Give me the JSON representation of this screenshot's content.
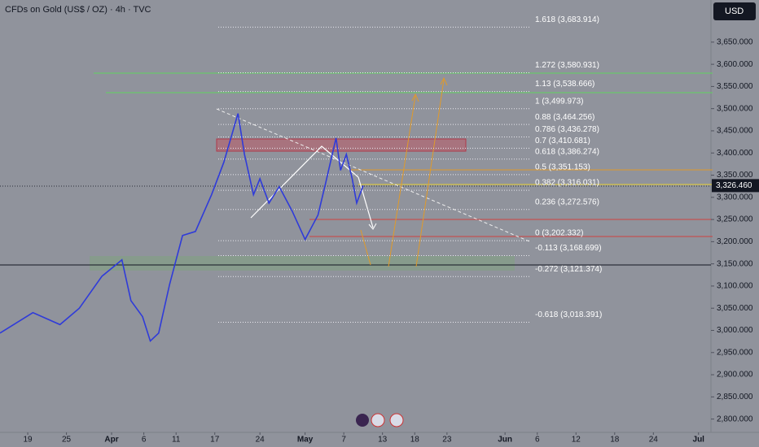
{
  "chart_data": {
    "type": "line",
    "title": "CFDs on Gold (US$ / OZ) · 4h · TVC",
    "currency": "USD",
    "x": [
      73.7,
      78.8,
      83,
      86,
      89.5,
      92.6,
      94,
      95.8,
      97,
      98.3,
      100,
      102,
      104,
      106.5,
      108.4,
      110.6,
      111.6,
      113,
      114,
      115.4,
      117,
      119,
      121,
      123,
      124.2,
      125.8,
      126.5,
      127.4,
      128.3,
      129,
      130
    ],
    "series": [
      {
        "name": "Gold",
        "color": "#2f3bd9",
        "values": [
          2994,
          3040,
          3013,
          3050,
          3122,
          3159,
          3067,
          3031,
          2976,
          2994,
          3104,
          3214,
          3223,
          3306,
          3379,
          3489,
          3397,
          3306,
          3342,
          3287,
          3324,
          3269,
          3205,
          3260,
          3333,
          3434,
          3361,
          3397,
          3342,
          3287,
          3326.46
        ]
      }
    ],
    "last_price": {
      "value": 3326.46,
      "label": "3,326.460"
    },
    "xlim": [
      73.7,
      183.8
    ],
    "xticks": [
      {
        "value": 78,
        "label": "19"
      },
      {
        "value": 84,
        "label": "25"
      },
      {
        "value": 91,
        "label": "Apr"
      },
      {
        "value": 96,
        "label": "6"
      },
      {
        "value": 101,
        "label": "11"
      },
      {
        "value": 107,
        "label": "17"
      },
      {
        "value": 114,
        "label": "24"
      },
      {
        "value": 121,
        "label": "May"
      },
      {
        "value": 127,
        "label": "7"
      },
      {
        "value": 133,
        "label": "13"
      },
      {
        "value": 138,
        "label": "18"
      },
      {
        "value": 143,
        "label": "23"
      },
      {
        "value": 152,
        "label": "Jun"
      },
      {
        "value": 157,
        "label": "6"
      },
      {
        "value": 163,
        "label": "12"
      },
      {
        "value": 169,
        "label": "18"
      },
      {
        "value": 175,
        "label": "24"
      },
      {
        "value": 182,
        "label": "Jul"
      }
    ],
    "ylim": [
      2770,
      3745
    ],
    "yticks": [
      {
        "value": 2800,
        "label": "2,800.000"
      },
      {
        "value": 2850,
        "label": "2,850.000"
      },
      {
        "value": 2900,
        "label": "2,900.000"
      },
      {
        "value": 2950,
        "label": "2,950.000"
      },
      {
        "value": 3000,
        "label": "3,000.000"
      },
      {
        "value": 3050,
        "label": "3,050.000"
      },
      {
        "value": 3100,
        "label": "3,100.000"
      },
      {
        "value": 3150,
        "label": "3,150.000"
      },
      {
        "value": 3200,
        "label": "3,200.000"
      },
      {
        "value": 3250,
        "label": "3,250.000"
      },
      {
        "value": 3300,
        "label": "3,300.000"
      },
      {
        "value": 3350,
        "label": "3,350.000"
      },
      {
        "value": 3400,
        "label": "3,400.000"
      },
      {
        "value": 3450,
        "label": "3,450.000"
      },
      {
        "value": 3500,
        "label": "3,500.000"
      },
      {
        "value": 3550,
        "label": "3,550.000"
      },
      {
        "value": 3600,
        "label": "3,600.000"
      },
      {
        "value": 3650,
        "label": "3,650.000"
      }
    ],
    "fib_levels": [
      {
        "value": 3683.914,
        "label": "1.618 (3,683.914)"
      },
      {
        "value": 3580.931,
        "label": "1.272 (3,580.931)"
      },
      {
        "value": 3538.666,
        "label": "1.13 (3,538.666)"
      },
      {
        "value": 3499.973,
        "label": "1 (3,499.973)"
      },
      {
        "value": 3464.256,
        "label": "0.88 (3,464.256)"
      },
      {
        "value": 3436.278,
        "label": "0.786 (3,436.278)"
      },
      {
        "value": 3410.681,
        "label": "0.7 (3,410.681)"
      },
      {
        "value": 3386.274,
        "label": "0.618 (3,386.274)"
      },
      {
        "value": 3351.153,
        "label": "0.5 (3,351.153)"
      },
      {
        "value": 3316.031,
        "label": "0.382 (3,316.031)"
      },
      {
        "value": 3272.576,
        "label": "0.236 (3,272.576)"
      },
      {
        "value": 3202.332,
        "label": "0 (3,202.332)"
      },
      {
        "value": 3168.699,
        "label": "-0.113 (3,168.699)"
      },
      {
        "value": 3121.374,
        "label": "-0.272 (3,121.374)"
      },
      {
        "value": 3018.391,
        "label": "-0.618 (3,018.391)"
      }
    ]
  }
}
